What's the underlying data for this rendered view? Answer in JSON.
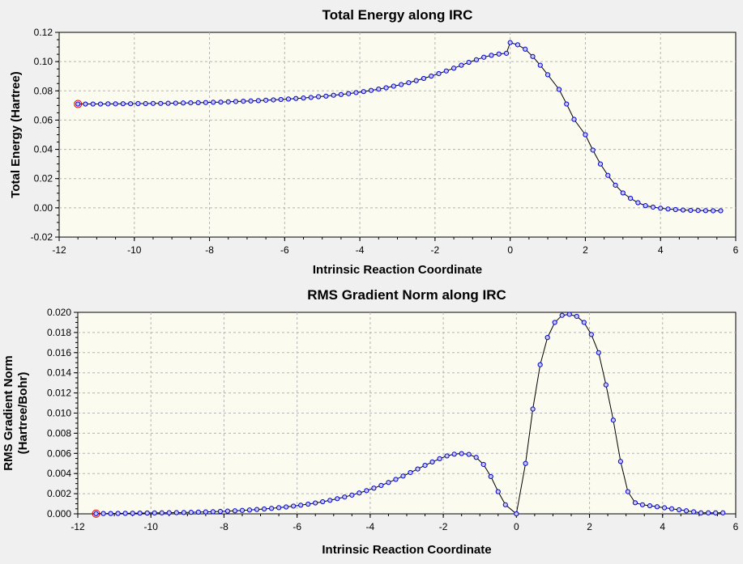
{
  "chart_data": [
    {
      "type": "line",
      "title": "Total Energy along IRC",
      "xlabel": "Intrinsic Reaction Coordinate",
      "ylabel": [
        "Total Energy (Hartree)"
      ],
      "xlim": [
        -12,
        6
      ],
      "ylim": [
        -0.02,
        0.12
      ],
      "xticks": [
        -12,
        -10,
        -8,
        -6,
        -4,
        -2,
        0,
        2,
        4,
        6
      ],
      "yticks": [
        -0.02,
        0.0,
        0.02,
        0.04,
        0.06,
        0.08,
        0.1,
        0.12
      ],
      "ytick_labels": [
        "-0.02",
        "0.00",
        "0.02",
        "0.04",
        "0.06",
        "0.08",
        "0.10",
        "0.12"
      ],
      "grid": true,
      "highlight_index": 0,
      "series": [
        {
          "x": [
            -11.5,
            -11.3,
            -11.1,
            -10.9,
            -10.7,
            -10.5,
            -10.3,
            -10.1,
            -9.9,
            -9.7,
            -9.5,
            -9.3,
            -9.1,
            -8.9,
            -8.7,
            -8.5,
            -8.3,
            -8.1,
            -7.9,
            -7.7,
            -7.5,
            -7.3,
            -7.1,
            -6.9,
            -6.7,
            -6.5,
            -6.3,
            -6.1,
            -5.9,
            -5.7,
            -5.5,
            -5.3,
            -5.1,
            -4.9,
            -4.7,
            -4.5,
            -4.3,
            -4.1,
            -3.9,
            -3.7,
            -3.5,
            -3.3,
            -3.1,
            -2.9,
            -2.7,
            -2.5,
            -2.3,
            -2.1,
            -1.9,
            -1.7,
            -1.5,
            -1.3,
            -1.1,
            -0.9,
            -0.7,
            -0.5,
            -0.3,
            -0.1,
            0.0,
            0.2,
            0.4,
            0.6,
            0.8,
            1.0,
            1.3,
            1.5,
            1.7,
            2.0,
            2.2,
            2.4,
            2.6,
            2.8,
            3.0,
            3.2,
            3.4,
            3.6,
            3.8,
            4.0,
            4.2,
            4.4,
            4.6,
            4.8,
            5.0,
            5.2,
            5.4,
            5.6
          ],
          "values": [
            0.071,
            0.071,
            0.071,
            0.071,
            0.0711,
            0.0711,
            0.0712,
            0.0712,
            0.0713,
            0.0713,
            0.0714,
            0.0714,
            0.0715,
            0.0716,
            0.0717,
            0.0718,
            0.0719,
            0.072,
            0.0722,
            0.0723,
            0.0725,
            0.0727,
            0.0729,
            0.0731,
            0.0733,
            0.0736,
            0.0738,
            0.0741,
            0.0744,
            0.0748,
            0.0751,
            0.0755,
            0.076,
            0.0764,
            0.077,
            0.0775,
            0.0781,
            0.0788,
            0.0795,
            0.0803,
            0.0812,
            0.0821,
            0.0832,
            0.0843,
            0.0856,
            0.087,
            0.0885,
            0.0901,
            0.0918,
            0.0936,
            0.0955,
            0.0975,
            0.0995,
            0.1013,
            0.103,
            0.1043,
            0.1052,
            0.1057,
            0.113,
            0.1115,
            0.1085,
            0.1035,
            0.0975,
            0.091,
            0.081,
            0.071,
            0.0605,
            0.05,
            0.0395,
            0.03,
            0.0222,
            0.0155,
            0.0102,
            0.0065,
            0.0035,
            0.0015,
            0.0005,
            -0.0003,
            -0.0008,
            -0.0012,
            -0.0015,
            -0.0017,
            -0.0018,
            -0.0019,
            -0.002,
            -0.002
          ]
        }
      ]
    },
    {
      "type": "line",
      "title": "RMS Gradient Norm along IRC",
      "xlabel": "Intrinsic Reaction Coordinate",
      "ylabel": [
        "RMS Gradient Norm",
        "(Hartree/Bohr)"
      ],
      "xlim": [
        -12,
        6
      ],
      "ylim": [
        0,
        0.02
      ],
      "xticks": [
        -12,
        -10,
        -8,
        -6,
        -4,
        -2,
        0,
        2,
        4,
        6
      ],
      "yticks": [
        0.0,
        0.002,
        0.004,
        0.006,
        0.008,
        0.01,
        0.012,
        0.014,
        0.016,
        0.018,
        0.02
      ],
      "ytick_labels": [
        "0.000",
        "0.002",
        "0.004",
        "0.006",
        "0.008",
        "0.010",
        "0.012",
        "0.014",
        "0.016",
        "0.018",
        "0.020"
      ],
      "grid": true,
      "highlight_index": 0,
      "series": [
        {
          "x": [
            -11.5,
            -11.3,
            -11.1,
            -10.9,
            -10.7,
            -10.5,
            -10.3,
            -10.1,
            -9.9,
            -9.7,
            -9.5,
            -9.3,
            -9.1,
            -8.9,
            -8.7,
            -8.5,
            -8.3,
            -8.1,
            -7.9,
            -7.7,
            -7.5,
            -7.3,
            -7.1,
            -6.9,
            -6.7,
            -6.5,
            -6.3,
            -6.1,
            -5.9,
            -5.7,
            -5.5,
            -5.3,
            -5.1,
            -4.9,
            -4.7,
            -4.5,
            -4.3,
            -4.1,
            -3.9,
            -3.7,
            -3.5,
            -3.3,
            -3.1,
            -2.9,
            -2.7,
            -2.5,
            -2.3,
            -2.1,
            -1.9,
            -1.7,
            -1.5,
            -1.3,
            -1.1,
            -0.9,
            -0.7,
            -0.5,
            -0.3,
            0.0,
            0.25,
            0.45,
            0.65,
            0.85,
            1.05,
            1.25,
            1.45,
            1.65,
            1.85,
            2.05,
            2.25,
            2.45,
            2.65,
            2.85,
            3.05,
            3.25,
            3.45,
            3.65,
            3.85,
            4.05,
            4.25,
            4.45,
            4.65,
            4.85,
            5.05,
            5.25,
            5.45,
            5.65
          ],
          "values": [
            2e-05,
            3e-05,
            3e-05,
            4e-05,
            5e-05,
            6e-05,
            7e-05,
            8e-05,
            9e-05,
            0.0001,
            0.00011,
            0.00012,
            0.00013,
            0.00015,
            0.00017,
            0.00019,
            0.00021,
            0.00024,
            0.00027,
            0.0003,
            0.00034,
            0.00038,
            0.00043,
            0.00048,
            0.00054,
            0.00061,
            0.00068,
            0.00077,
            0.00086,
            0.00096,
            0.00108,
            0.0012,
            0.00134,
            0.0015,
            0.00167,
            0.00186,
            0.00207,
            0.0023,
            0.00255,
            0.00282,
            0.00311,
            0.00342,
            0.00375,
            0.0041,
            0.00445,
            0.00481,
            0.00515,
            0.00547,
            0.00575,
            0.00592,
            0.00598,
            0.0059,
            0.0056,
            0.0049,
            0.0037,
            0.0022,
            0.0009,
            0.0,
            0.005,
            0.0104,
            0.0148,
            0.0175,
            0.019,
            0.0197,
            0.0198,
            0.0196,
            0.019,
            0.0178,
            0.016,
            0.0128,
            0.0093,
            0.0052,
            0.0022,
            0.0011,
            0.0009,
            0.0008,
            0.0007,
            0.0006,
            0.0005,
            0.0004,
            0.0003,
            0.0002,
            0.0001,
            0.0001,
            0.0001,
            0.0001
          ]
        }
      ]
    }
  ]
}
